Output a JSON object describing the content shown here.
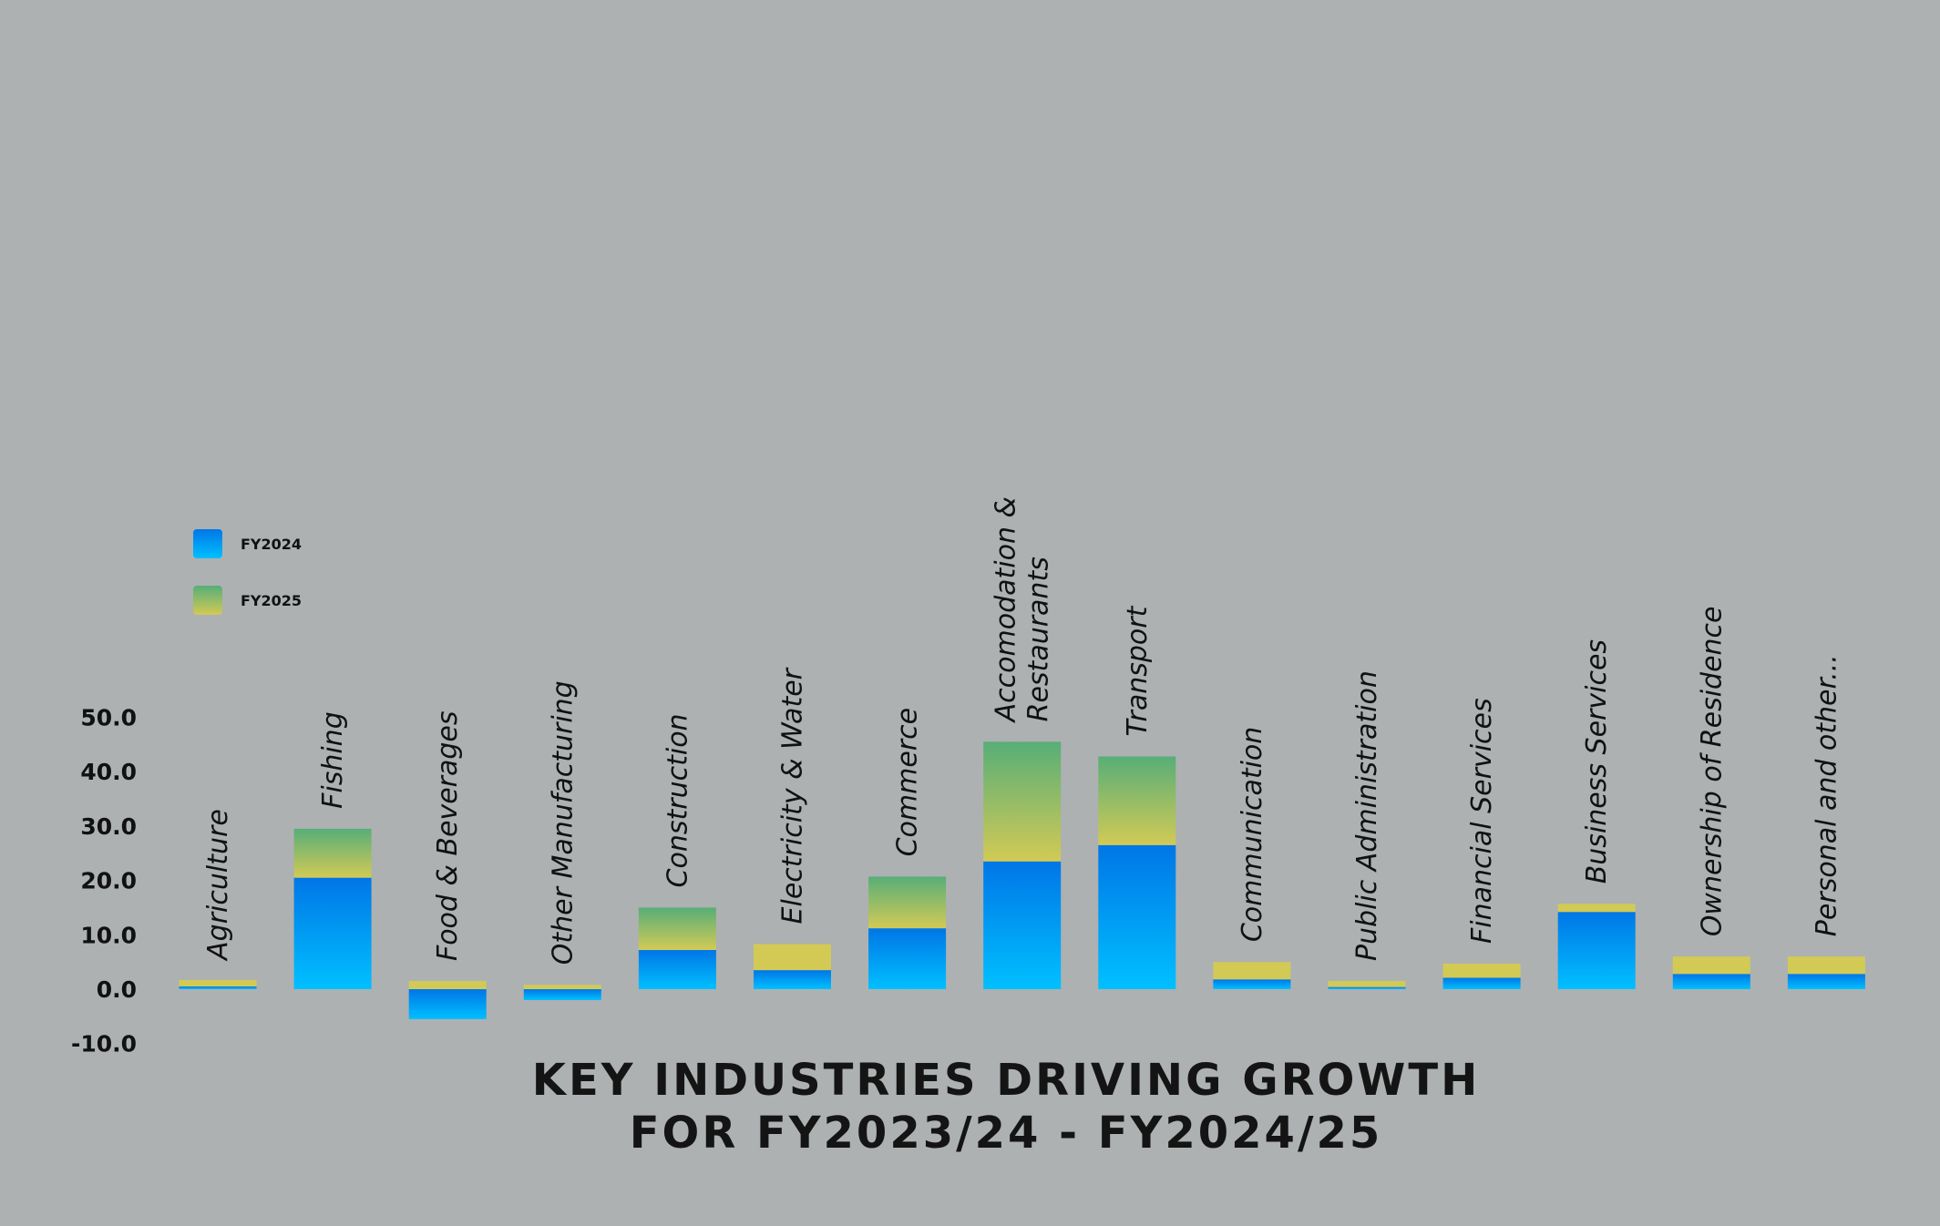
{
  "chart_data": {
    "type": "bar",
    "stacked": true,
    "title": "KEY INDUSTRIES DRIVING GROWTH FOR FY2023/24 - FY2024/25",
    "title_lines": [
      "KEY INDUSTRIES DRIVING GROWTH",
      "FOR FY2023/24 - FY2024/25"
    ],
    "categories": [
      "Agriculture",
      "Fishing",
      "Food & Beverages",
      "Other Manufacturing",
      "Construction",
      "Electricity & Water",
      "Commerce",
      "Accomodation & Restaurants",
      "Transport",
      "Communication",
      "Public Administration",
      "Financial Services",
      "Business Services",
      "Ownership of Residence",
      "Personal and other..."
    ],
    "series": [
      {
        "name": "FY2024",
        "values": [
          0.5,
          20.5,
          -5.5,
          -2.0,
          7.2,
          3.5,
          11.2,
          23.5,
          26.5,
          1.8,
          0.4,
          2.1,
          14.2,
          2.8,
          2.8
        ],
        "color_top": "#0076e6",
        "color_bottom": "#00c0ff"
      },
      {
        "name": "FY2025",
        "values": [
          1.2,
          9.0,
          1.5,
          0.8,
          7.8,
          4.8,
          9.5,
          22.0,
          16.3,
          3.2,
          1.1,
          2.6,
          1.5,
          3.2,
          3.2
        ],
        "color_top": "#57ae78",
        "color_bottom": "#d2ca55",
        "solid_color": "#d2ca55"
      }
    ],
    "y_ticks": [
      "50.0",
      "40.0",
      "30.0",
      "20.0",
      "10.0",
      "0.0",
      "-10.0"
    ],
    "ylim": [
      -10,
      50
    ],
    "legend_position": "top-left",
    "grid": false
  }
}
